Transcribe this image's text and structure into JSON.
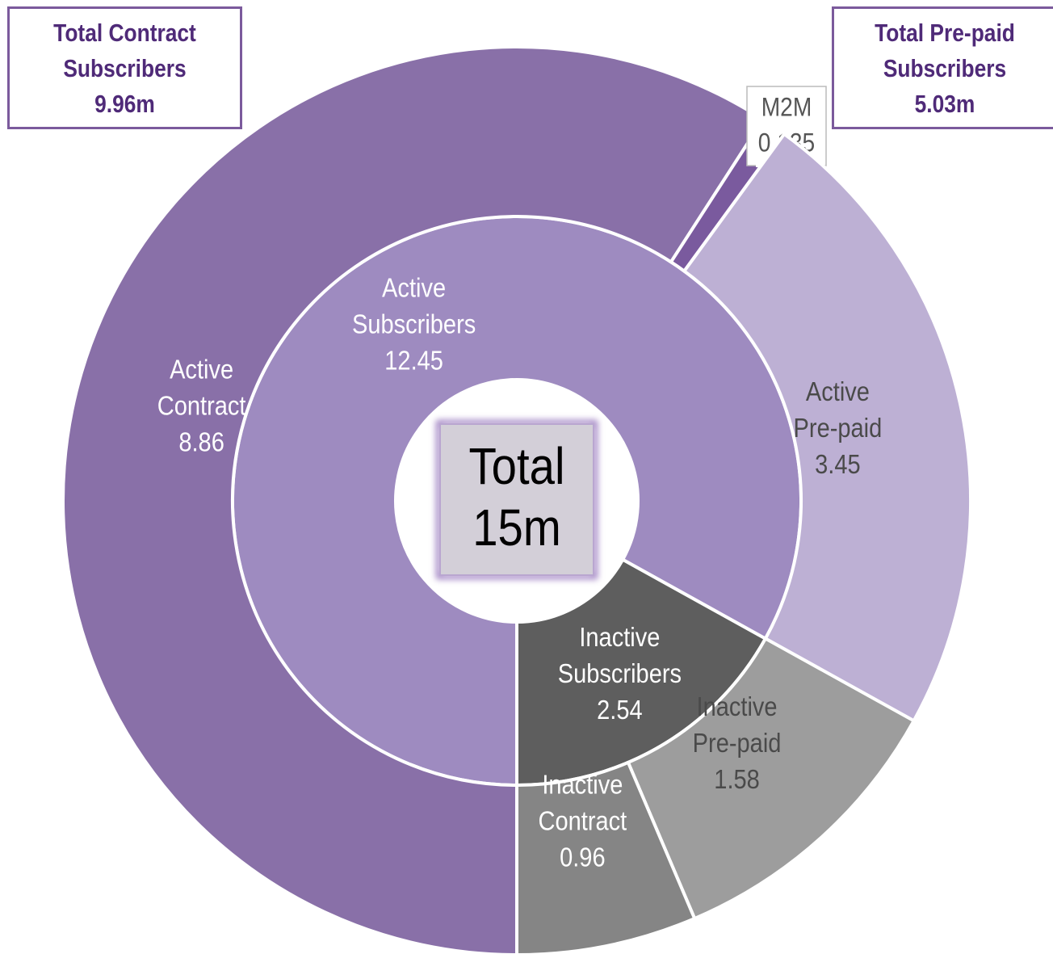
{
  "chart_data": {
    "type": "sunburst",
    "rings": [
      {
        "labels": [
          [
            "Active",
            "Subscribers"
          ],
          [
            "Inactive",
            "Subscribers"
          ]
        ],
        "values": [
          12.45,
          2.54
        ],
        "colors": [
          "#9e8bc0",
          "#5e5e5e"
        ],
        "label_colors": [
          "#ffffff",
          "#ffffff"
        ]
      },
      {
        "labels": [
          [
            "Active",
            "Contract"
          ],
          [
            "M2M"
          ],
          [
            "Active",
            "Pre-paid"
          ],
          [
            "Inactive",
            "Pre-paid"
          ],
          [
            "Inactive",
            "Contract"
          ]
        ],
        "values": [
          8.86,
          0.135,
          3.45,
          1.58,
          0.96
        ],
        "colors": [
          "#8970a8",
          "#7a5a9e",
          "#bdb0d4",
          "#9d9d9d",
          "#858585"
        ],
        "label_colors": [
          "#ffffff",
          "#555555",
          "#4a4a4a",
          "#4a4a4a",
          "#ffffff"
        ]
      }
    ],
    "center": [
      "Total",
      "15m"
    ],
    "callouts": [
      [
        "Total Contract",
        "Subscribers",
        "9.96m"
      ],
      [
        "Total Pre-paid",
        "Subscribers",
        "5.03m"
      ]
    ]
  }
}
